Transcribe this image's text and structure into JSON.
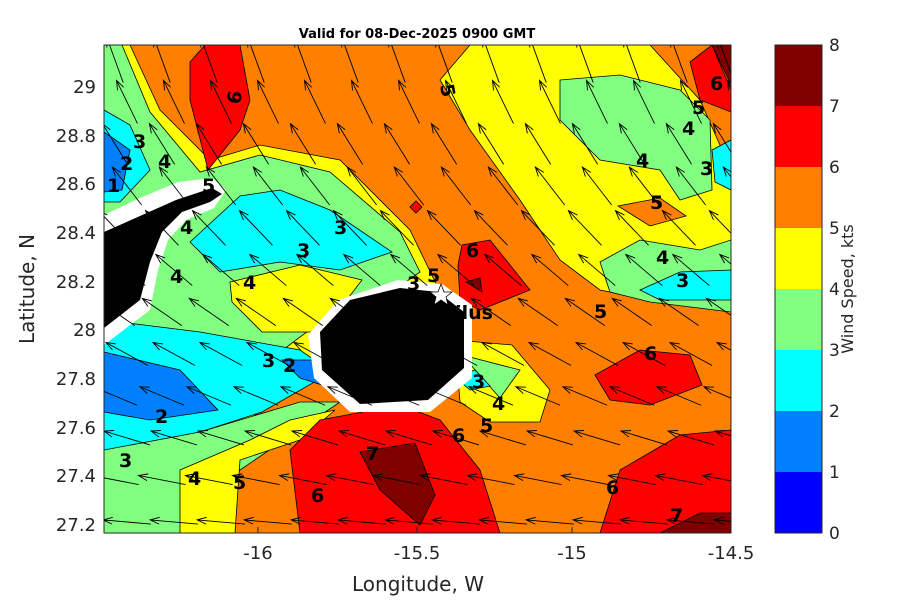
{
  "chart_data": {
    "type": "contour",
    "title": "Valid for 08-Dec-2025 0900 GMT",
    "xlabel": "Longitude, W",
    "ylabel": "Latitude, N",
    "xlim": [
      -16.49,
      -14.5
    ],
    "ylim": [
      27.16,
      29.17
    ],
    "xticks": [
      "-16",
      "-15.5",
      "-15",
      "-14.5"
    ],
    "yticks": [
      "29",
      "28.8",
      "28.6",
      "28.4",
      "28.2",
      "28",
      "27.8",
      "27.6",
      "27.4",
      "27.2"
    ],
    "colorbar": {
      "label": "Wind Speed, kts",
      "range": [
        0,
        8
      ],
      "ticks": [
        "0",
        "1",
        "2",
        "3",
        "4",
        "5",
        "6",
        "7",
        "8"
      ],
      "colors": [
        "#0000ff",
        "#0080ff",
        "#00ffff",
        "#80ff80",
        "#ffff00",
        "#ff8000",
        "#ff0000",
        "#800000"
      ]
    },
    "contour_labels": [
      "5",
      "6",
      "1",
      "2",
      "3",
      "4",
      "5",
      "4",
      "3",
      "3",
      "4",
      "4",
      "6",
      "5",
      "3",
      "3",
      "2",
      "2",
      "3",
      "4",
      "5",
      "6",
      "7",
      "6",
      "5",
      "3",
      "4",
      "5",
      "6",
      "6",
      "7",
      "5",
      "4",
      "3",
      "4",
      "5",
      "6",
      "4",
      "3"
    ],
    "station": {
      "label": "tilus",
      "marker": "star"
    }
  }
}
